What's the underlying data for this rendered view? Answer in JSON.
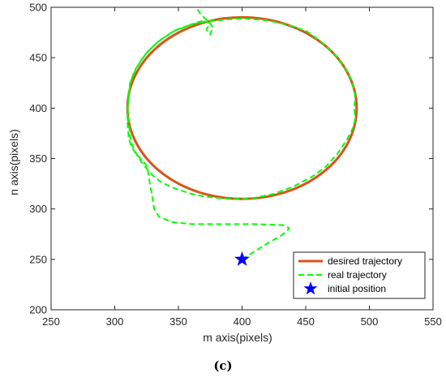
{
  "caption": "(c)",
  "chart_data": {
    "type": "line",
    "xlabel": "m axis(pixels)",
    "ylabel": "n axis(pixels)",
    "xlim": [
      250,
      550
    ],
    "ylim": [
      200,
      500
    ],
    "xticks": [
      250,
      300,
      350,
      400,
      450,
      500,
      550
    ],
    "yticks": [
      200,
      250,
      300,
      350,
      400,
      450,
      500
    ],
    "grid": false,
    "legend_position": "bottom-right",
    "series": [
      {
        "name": "desired trajectory",
        "style": "solid",
        "color": "#D95319",
        "shape": "ellipse",
        "center": [
          400,
          400
        ],
        "radius_m": 90,
        "radius_n": 90
      },
      {
        "name": "real trajectory",
        "style": "dashed",
        "color": "#00FF00",
        "points": [
          [
            400,
            250
          ],
          [
            410,
            258
          ],
          [
            420,
            266
          ],
          [
            430,
            273
          ],
          [
            436,
            279
          ],
          [
            437,
            281
          ],
          [
            432,
            284
          ],
          [
            410,
            285
          ],
          [
            380,
            285
          ],
          [
            360,
            285
          ],
          [
            345,
            287
          ],
          [
            335,
            292
          ],
          [
            331,
            300
          ],
          [
            330,
            308
          ],
          [
            329,
            316
          ],
          [
            328,
            322
          ],
          [
            327,
            330
          ],
          [
            326,
            338
          ],
          [
            325,
            343
          ],
          [
            321,
            349
          ],
          [
            316,
            356
          ],
          [
            313,
            362
          ],
          [
            311,
            370
          ],
          [
            310,
            385
          ],
          [
            310,
            400
          ],
          [
            311,
            415
          ],
          [
            313,
            428
          ],
          [
            317,
            440
          ],
          [
            325,
            455
          ],
          [
            335,
            467
          ],
          [
            347,
            477
          ],
          [
            360,
            483
          ],
          [
            372,
            486
          ],
          [
            380,
            487
          ],
          [
            389,
            488
          ],
          [
            400,
            489
          ],
          [
            420,
            487
          ],
          [
            438,
            482
          ],
          [
            451,
            476
          ],
          [
            462,
            466
          ],
          [
            473,
            453
          ],
          [
            481,
            440
          ],
          [
            486,
            428
          ],
          [
            488,
            418
          ],
          [
            489,
            410
          ],
          [
            488,
            400
          ],
          [
            489,
            390
          ],
          [
            487,
            380
          ],
          [
            482,
            368
          ],
          [
            475,
            355
          ],
          [
            466,
            342
          ],
          [
            455,
            332
          ],
          [
            440,
            322
          ],
          [
            425,
            315
          ],
          [
            410,
            311
          ],
          [
            400,
            310
          ],
          [
            390,
            310
          ],
          [
            372,
            312
          ],
          [
            360,
            315
          ],
          [
            348,
            320
          ],
          [
            337,
            326
          ],
          [
            330,
            333
          ],
          [
            323,
            343
          ],
          [
            318,
            352
          ],
          [
            314,
            362
          ],
          [
            312,
            372
          ],
          [
            311,
            388
          ],
          [
            310,
            400
          ],
          [
            311,
            412
          ],
          [
            312,
            425
          ],
          [
            316,
            438
          ],
          [
            323,
            452
          ],
          [
            333,
            465
          ],
          [
            346,
            476
          ],
          [
            360,
            483
          ],
          [
            370,
            487
          ],
          [
            375,
            484
          ],
          [
            372,
            478
          ],
          [
            375,
            473
          ],
          [
            377,
            480
          ],
          [
            374,
            486
          ],
          [
            370,
            490
          ],
          [
            367,
            494
          ],
          [
            365,
            498
          ],
          [
            363,
            501
          ]
        ]
      },
      {
        "name": "initial position",
        "style": "marker",
        "marker": "star",
        "color": "#0000FF",
        "points": [
          [
            400,
            250
          ]
        ]
      }
    ]
  }
}
